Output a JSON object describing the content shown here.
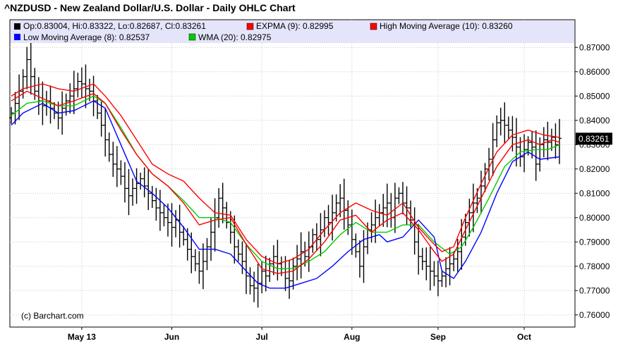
{
  "chart_data": {
    "type": "ohlc",
    "title": "^NZDUSD - New Zealand Dollar/U.S. Dollar - Daily OHLC Chart",
    "credit": "(c) Barchart.com",
    "last_price_label": "0.83261",
    "legend": [
      {
        "label": "Op:0.83004, Hi:0.83322, Lo:0.82687, Cl:0.83261",
        "color": "#000000"
      },
      {
        "label": "EXPMA (9): 0.82995",
        "color": "#ff0000"
      },
      {
        "label": "High Moving Average (10): 0.83260",
        "color": "#ff0000"
      },
      {
        "label": "Low Moving Average (8): 0.82537",
        "color": "#0000ff"
      },
      {
        "label": "WMA (20): 0.82975",
        "color": "#00cc00"
      }
    ],
    "ylim": [
      0.755,
      0.875
    ],
    "y_ticks": [
      0.76,
      0.77,
      0.78,
      0.79,
      0.8,
      0.81,
      0.82,
      0.83,
      0.84,
      0.85,
      0.86,
      0.87
    ],
    "y_tick_labels": [
      "0.76000",
      "0.77000",
      "0.78000",
      "0.79000",
      "0.80000",
      "0.81000",
      "0.82000",
      "0.83000",
      "0.84000",
      "0.85000",
      "0.86000",
      "0.87000"
    ],
    "x_ticks": [
      "May 13",
      "Jun",
      "Jul",
      "Aug",
      "Sep",
      "Oct"
    ],
    "x_tick_index": [
      18,
      41,
      64,
      87,
      109,
      131
    ],
    "grid": true,
    "close": [
      0.843,
      0.847,
      0.852,
      0.858,
      0.865,
      0.858,
      0.852,
      0.848,
      0.846,
      0.848,
      0.845,
      0.843,
      0.841,
      0.845,
      0.848,
      0.85,
      0.853,
      0.856,
      0.855,
      0.853,
      0.852,
      0.848,
      0.843,
      0.838,
      0.832,
      0.826,
      0.822,
      0.82,
      0.817,
      0.812,
      0.809,
      0.812,
      0.814,
      0.816,
      0.813,
      0.81,
      0.807,
      0.804,
      0.802,
      0.8,
      0.798,
      0.796,
      0.799,
      0.794,
      0.791,
      0.787,
      0.784,
      0.781,
      0.778,
      0.782,
      0.788,
      0.794,
      0.8,
      0.808,
      0.804,
      0.798,
      0.794,
      0.788,
      0.785,
      0.782,
      0.776,
      0.772,
      0.771,
      0.773,
      0.778,
      0.776,
      0.781,
      0.784,
      0.781,
      0.779,
      0.775,
      0.774,
      0.78,
      0.783,
      0.786,
      0.784,
      0.788,
      0.793,
      0.791,
      0.795,
      0.8,
      0.798,
      0.802,
      0.806,
      0.808,
      0.803,
      0.797,
      0.791,
      0.786,
      0.78,
      0.788,
      0.795,
      0.797,
      0.8,
      0.802,
      0.804,
      0.806,
      0.8,
      0.808,
      0.81,
      0.806,
      0.804,
      0.799,
      0.79,
      0.784,
      0.782,
      0.78,
      0.778,
      0.776,
      0.774,
      0.776,
      0.779,
      0.781,
      0.783,
      0.786,
      0.792,
      0.798,
      0.802,
      0.806,
      0.808,
      0.813,
      0.82,
      0.824,
      0.832,
      0.839,
      0.84,
      0.838,
      0.836,
      0.833,
      0.829,
      0.825,
      0.828,
      0.831,
      0.829,
      0.822,
      0.83,
      0.832,
      0.831,
      0.833,
      0.83,
      0.8326
    ],
    "series": [
      {
        "name": "EXPMA (9)",
        "color": "#ff0000",
        "points": [
          [
            0,
            0.848
          ],
          [
            4,
            0.852
          ],
          [
            8,
            0.849
          ],
          [
            12,
            0.846
          ],
          [
            16,
            0.848
          ],
          [
            21,
            0.851
          ],
          [
            24,
            0.847
          ],
          [
            28,
            0.836
          ],
          [
            32,
            0.826
          ],
          [
            36,
            0.818
          ],
          [
            40,
            0.813
          ],
          [
            44,
            0.806
          ],
          [
            48,
            0.797
          ],
          [
            52,
            0.799
          ],
          [
            56,
            0.8
          ],
          [
            60,
            0.789
          ],
          [
            64,
            0.779
          ],
          [
            68,
            0.777
          ],
          [
            72,
            0.778
          ],
          [
            76,
            0.783
          ],
          [
            80,
            0.79
          ],
          [
            84,
            0.799
          ],
          [
            88,
            0.801
          ],
          [
            92,
            0.794
          ],
          [
            96,
            0.799
          ],
          [
            100,
            0.802
          ],
          [
            104,
            0.795
          ],
          [
            108,
            0.786
          ],
          [
            110,
            0.782
          ],
          [
            113,
            0.785
          ],
          [
            116,
            0.795
          ],
          [
            120,
            0.808
          ],
          [
            124,
            0.821
          ],
          [
            128,
            0.83
          ],
          [
            132,
            0.832
          ],
          [
            135,
            0.83
          ],
          [
            138,
            0.832
          ],
          [
            140,
            0.831
          ]
        ]
      },
      {
        "name": "High Moving Average (10)",
        "color": "#ff0000",
        "points": [
          [
            0,
            0.85
          ],
          [
            3,
            0.853
          ],
          [
            8,
            0.855
          ],
          [
            12,
            0.853
          ],
          [
            16,
            0.852
          ],
          [
            21,
            0.855
          ],
          [
            24,
            0.85
          ],
          [
            28,
            0.842
          ],
          [
            32,
            0.832
          ],
          [
            36,
            0.822
          ],
          [
            40,
            0.818
          ],
          [
            44,
            0.815
          ],
          [
            48,
            0.808
          ],
          [
            52,
            0.802
          ],
          [
            56,
            0.801
          ],
          [
            60,
            0.791
          ],
          [
            64,
            0.784
          ],
          [
            68,
            0.781
          ],
          [
            72,
            0.783
          ],
          [
            76,
            0.787
          ],
          [
            80,
            0.795
          ],
          [
            84,
            0.802
          ],
          [
            88,
            0.806
          ],
          [
            92,
            0.803
          ],
          [
            96,
            0.801
          ],
          [
            100,
            0.806
          ],
          [
            104,
            0.796
          ],
          [
            108,
            0.789
          ],
          [
            110,
            0.786
          ],
          [
            113,
            0.788
          ],
          [
            116,
            0.8
          ],
          [
            120,
            0.814
          ],
          [
            124,
            0.827
          ],
          [
            128,
            0.834
          ],
          [
            132,
            0.836
          ],
          [
            136,
            0.834
          ],
          [
            140,
            0.833
          ]
        ]
      },
      {
        "name": "Low Moving Average (8)",
        "color": "#0000ff",
        "points": [
          [
            0,
            0.838
          ],
          [
            3,
            0.843
          ],
          [
            8,
            0.847
          ],
          [
            12,
            0.843
          ],
          [
            16,
            0.844
          ],
          [
            21,
            0.848
          ],
          [
            24,
            0.845
          ],
          [
            28,
            0.83
          ],
          [
            32,
            0.815
          ],
          [
            36,
            0.81
          ],
          [
            40,
            0.804
          ],
          [
            44,
            0.796
          ],
          [
            48,
            0.787
          ],
          [
            52,
            0.787
          ],
          [
            56,
            0.785
          ],
          [
            60,
            0.778
          ],
          [
            63,
            0.773
          ],
          [
            66,
            0.771
          ],
          [
            70,
            0.771
          ],
          [
            74,
            0.773
          ],
          [
            78,
            0.775
          ],
          [
            82,
            0.78
          ],
          [
            86,
            0.786
          ],
          [
            90,
            0.791
          ],
          [
            94,
            0.793
          ],
          [
            96,
            0.79
          ],
          [
            100,
            0.792
          ],
          [
            104,
            0.799
          ],
          [
            108,
            0.792
          ],
          [
            110,
            0.778
          ],
          [
            113,
            0.775
          ],
          [
            116,
            0.782
          ],
          [
            120,
            0.794
          ],
          [
            124,
            0.81
          ],
          [
            128,
            0.823
          ],
          [
            132,
            0.827
          ],
          [
            135,
            0.824
          ],
          [
            140,
            0.825
          ]
        ]
      },
      {
        "name": "WMA (20)",
        "color": "#00cc00",
        "points": [
          [
            0,
            0.842
          ],
          [
            4,
            0.847
          ],
          [
            8,
            0.848
          ],
          [
            12,
            0.846
          ],
          [
            16,
            0.846
          ],
          [
            21,
            0.85
          ],
          [
            24,
            0.847
          ],
          [
            28,
            0.837
          ],
          [
            32,
            0.826
          ],
          [
            36,
            0.818
          ],
          [
            40,
            0.813
          ],
          [
            44,
            0.807
          ],
          [
            48,
            0.8
          ],
          [
            52,
            0.8
          ],
          [
            56,
            0.798
          ],
          [
            60,
            0.789
          ],
          [
            64,
            0.782
          ],
          [
            68,
            0.779
          ],
          [
            72,
            0.779
          ],
          [
            76,
            0.782
          ],
          [
            80,
            0.786
          ],
          [
            84,
            0.793
          ],
          [
            88,
            0.798
          ],
          [
            92,
            0.794
          ],
          [
            96,
            0.794
          ],
          [
            100,
            0.797
          ],
          [
            104,
            0.797
          ],
          [
            108,
            0.79
          ],
          [
            112,
            0.785
          ],
          [
            115,
            0.788
          ],
          [
            118,
            0.796
          ],
          [
            122,
            0.808
          ],
          [
            126,
            0.821
          ],
          [
            130,
            0.827
          ],
          [
            134,
            0.828
          ],
          [
            137,
            0.828
          ],
          [
            140,
            0.83
          ]
        ]
      }
    ]
  }
}
